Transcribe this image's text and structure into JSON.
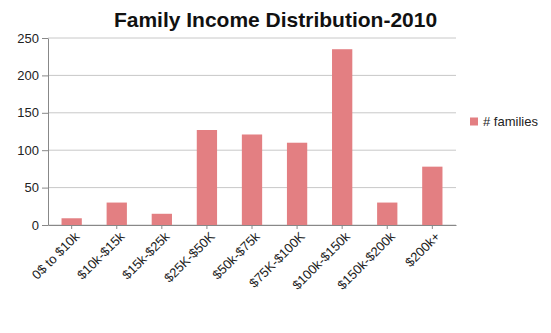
{
  "chart_data": {
    "type": "bar",
    "title": "Family Income Distribution-2010",
    "categories": [
      "0$ to $10k",
      "$10k-$15k",
      "$15k-$25k",
      "$25K-$50K",
      "$50k-$75k",
      "$75K-$100K",
      "$100k-$150k",
      "$150k-$200k",
      "$200k+"
    ],
    "series": [
      {
        "name": "# families",
        "color": "#e37f82",
        "values": [
          9,
          30,
          15,
          127,
          121,
          110,
          235,
          30,
          78
        ]
      }
    ],
    "ylim": [
      0,
      250
    ],
    "yticks": [
      0,
      50,
      100,
      150,
      200,
      250
    ],
    "grid": true,
    "legend": "right"
  }
}
